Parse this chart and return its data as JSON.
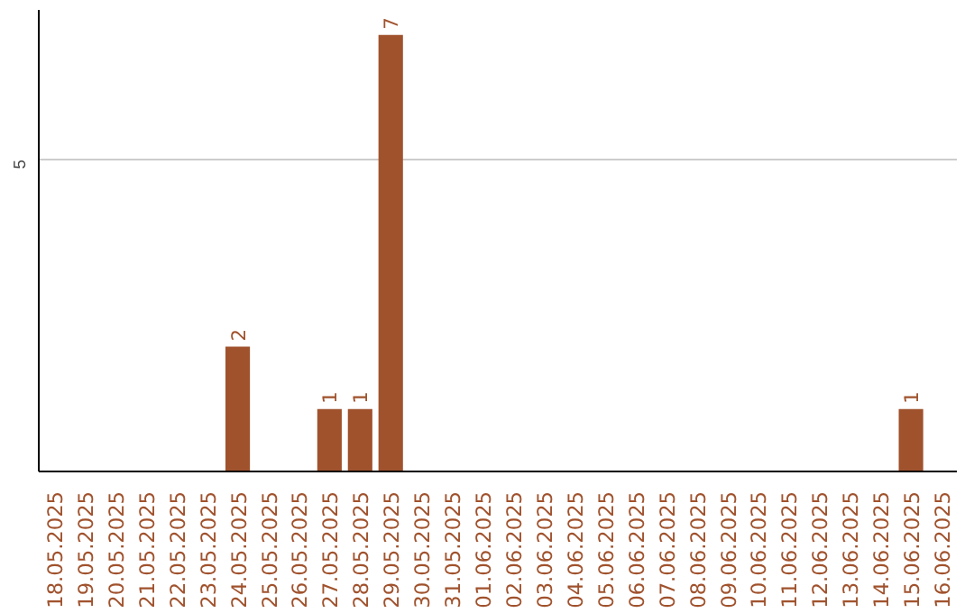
{
  "chart_data": {
    "type": "bar",
    "categories": [
      "18.05.2025",
      "19.05.2025",
      "20.05.2025",
      "21.05.2025",
      "22.05.2025",
      "23.05.2025",
      "24.05.2025",
      "25.05.2025",
      "26.05.2025",
      "27.05.2025",
      "28.05.2025",
      "29.05.2025",
      "30.05.2025",
      "31.05.2025",
      "01.06.2025",
      "02.06.2025",
      "03.06.2025",
      "04.06.2025",
      "05.06.2025",
      "06.06.2025",
      "07.06.2025",
      "08.06.2025",
      "09.06.2025",
      "10.06.2025",
      "11.06.2025",
      "12.06.2025",
      "13.06.2025",
      "14.06.2025",
      "15.06.2025",
      "16.06.2025"
    ],
    "values": [
      0,
      0,
      0,
      0,
      0,
      0,
      2,
      0,
      0,
      1,
      1,
      7,
      0,
      0,
      0,
      0,
      0,
      0,
      0,
      0,
      0,
      0,
      0,
      0,
      0,
      0,
      0,
      0,
      1,
      0
    ],
    "value_labels": [
      null,
      null,
      null,
      null,
      null,
      null,
      "2",
      null,
      null,
      "1",
      "1",
      "7",
      null,
      null,
      null,
      null,
      null,
      null,
      null,
      null,
      null,
      null,
      null,
      null,
      null,
      null,
      null,
      null,
      "1",
      null
    ],
    "color": "#a0522d",
    "ylim": [
      0,
      7.4
    ],
    "yticks": [
      5
    ],
    "grid": "y"
  }
}
